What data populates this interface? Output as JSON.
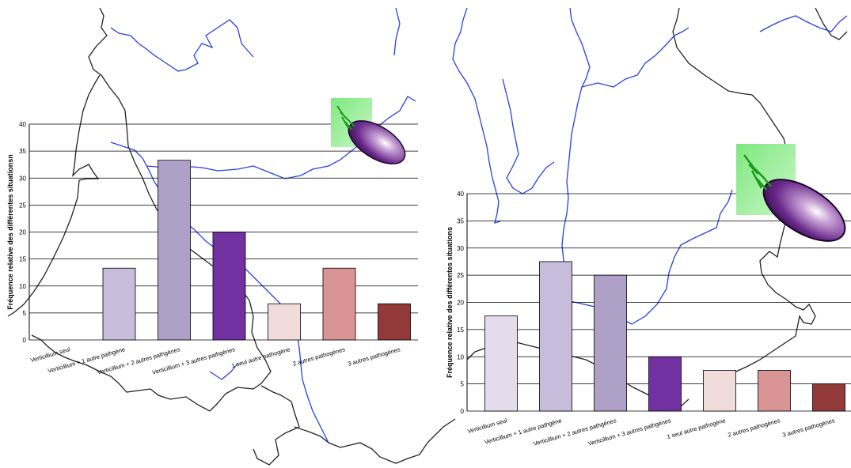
{
  "colors": {
    "border": "#222222",
    "river": "#2b3fe0",
    "grid": "#000000",
    "bar_colors": [
      "#e4dcea",
      "#c7bcda",
      "#afa0c8",
      "#7131a0",
      "#f1dbdb",
      "#d99595",
      "#923a3a"
    ]
  },
  "icons": [
    "eggplant-icon"
  ],
  "chart_data": [
    {
      "type": "bar",
      "title": "",
      "xlabel": "",
      "ylabel": "Fréquence relative des différentes situationsn",
      "ylim": [
        0,
        40
      ],
      "yticks": [
        0,
        5,
        10,
        15,
        20,
        25,
        30,
        35,
        40
      ],
      "grid": true,
      "categories": [
        "Verticillium seul",
        "Verticillium + 1 autre pathgène",
        "Verticillium + 2 autres pathgènes",
        "Verticillium + 3 autres pathgènes",
        "1 seul autre pathogène",
        "2 autres pathogènes",
        "3 autres pathogènes"
      ],
      "values": [
        0,
        13.3,
        33.3,
        20,
        6.7,
        13.3,
        6.7
      ],
      "bar_color_index": [
        0,
        1,
        2,
        3,
        4,
        5,
        6
      ]
    },
    {
      "type": "bar",
      "title": "",
      "xlabel": "",
      "ylabel": "Fréquence relative des différentes situations",
      "ylim": [
        0,
        40
      ],
      "yticks": [
        0,
        5,
        10,
        15,
        20,
        25,
        30,
        35,
        40
      ],
      "grid": true,
      "categories": [
        "Verticillium seul",
        "Verticillium + 1 autre pathgène",
        "Verticillium + 2 autres pathgènes",
        "Verticillium + 3 autres pathgènes",
        "1 seul autre pathogène",
        "2 autres pathogènes",
        "3 autres pathogènes"
      ],
      "values": [
        17.5,
        27.5,
        25,
        10,
        7.5,
        7.5,
        5
      ],
      "bar_color_index": [
        0,
        1,
        2,
        3,
        4,
        5,
        6
      ]
    }
  ]
}
